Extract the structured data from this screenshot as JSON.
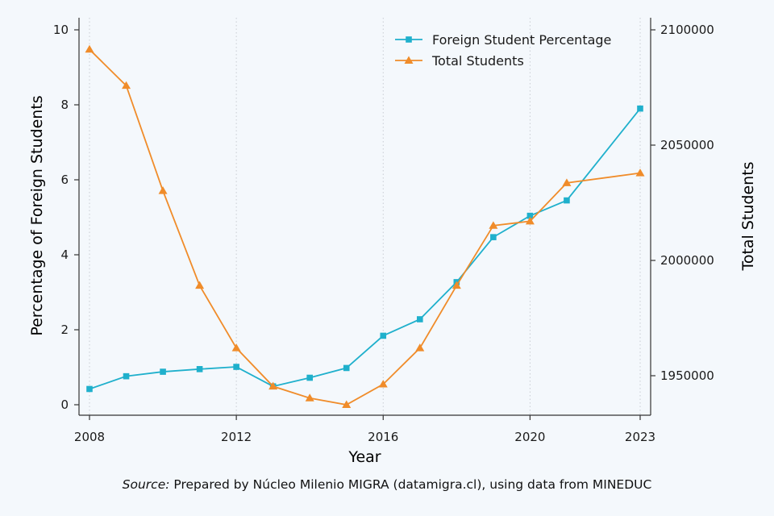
{
  "chart_data": {
    "type": "line",
    "xlabel": "Year",
    "ylabel_left": "Percentage of Foreign Students",
    "ylabel_right": "Total Students",
    "x_ticks": [
      2008,
      2012,
      2016,
      2020,
      2023
    ],
    "y_left_ticks": [
      0,
      2,
      4,
      6,
      8,
      10
    ],
    "y_right_ticks": [
      1950000,
      2000000,
      2050000,
      2100000
    ],
    "xlim": [
      2008,
      2023
    ],
    "ylim_left": [
      0,
      10
    ],
    "ylim_right": [
      1937400,
      2104700
    ],
    "grid": "vertical dotted at x ticks",
    "legend_position": "top-right",
    "series": [
      {
        "name": "Foreign Student Percentage",
        "axis": "left",
        "color": "#1fb0cc",
        "marker": "square",
        "x": [
          2008,
          2009,
          2010,
          2011,
          2012,
          2013,
          2014,
          2015,
          2016,
          2017,
          2018,
          2019,
          2020,
          2021,
          2023
        ],
        "values": [
          0.42,
          0.76,
          0.88,
          0.95,
          1.01,
          0.49,
          0.72,
          0.98,
          1.84,
          2.28,
          3.27,
          4.47,
          5.04,
          5.45,
          7.9
        ]
      },
      {
        "name": "Total Students",
        "axis": "right",
        "color": "#f08c2a",
        "marker": "triangle",
        "x": [
          2008,
          2009,
          2010,
          2011,
          2012,
          2013,
          2014,
          2015,
          2016,
          2017,
          2018,
          2019,
          2020,
          2021,
          2023
        ],
        "values": [
          2091500,
          2075800,
          2030200,
          1989100,
          1962000,
          1945400,
          1940300,
          1937400,
          1946300,
          1962000,
          1989100,
          2015100,
          2017000,
          2033600,
          2037900
        ]
      }
    ]
  },
  "source": {
    "label": "Source:",
    "text": " Prepared by Núcleo Milenio MIGRA (datamigra.cl), using data from MINEDUC"
  }
}
